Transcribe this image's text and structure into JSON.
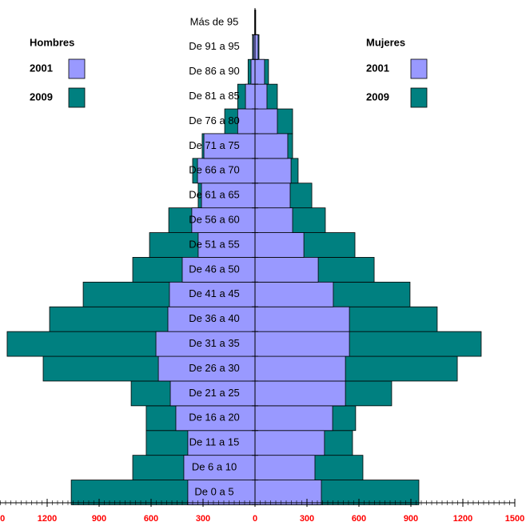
{
  "chart_data": {
    "type": "pyramid",
    "categories": [
      "De 0 a 5",
      "De 6 a 10",
      "De 11 a 15",
      "De 16 a 20",
      "De 21 a 25",
      "De 26 a 30",
      "De 31 a 35",
      "De 36 a 40",
      "De 41 a 45",
      "De 46 a 50",
      "De 51 a 55",
      "De 56 a 60",
      "De 61 a 65",
      "De 66 a 70",
      "De 71 a 75",
      "De 76 a 80",
      "De 81 a 85",
      "De 86 a 90",
      "De 91 a 95",
      "Más de 95"
    ],
    "groups": [
      {
        "name": "Hombres",
        "side": "left",
        "series": [
          {
            "name": "2001",
            "color": "#9999ff",
            "values": [
              388,
              411,
              388,
              457,
              489,
              558,
              572,
              503,
              494,
              420,
              328,
              365,
              309,
              332,
              295,
              100,
              55,
              23,
              9,
              1
            ]
          },
          {
            "name": "2009",
            "color": "#008080",
            "values": [
              1061,
              706,
              628,
              628,
              715,
              1223,
              1431,
              1186,
              992,
              706,
              609,
              498,
              328,
              360,
              305,
              175,
              100,
              40,
              14,
              2
            ]
          }
        ]
      },
      {
        "name": "Mujeres",
        "side": "right",
        "series": [
          {
            "name": "2001",
            "color": "#9999ff",
            "values": [
              383,
              346,
              401,
              448,
              522,
              522,
              545,
              545,
              452,
              365,
              282,
              217,
              203,
              208,
              189,
              129,
              69,
              55,
              18,
              3
            ]
          },
          {
            "name": "2009",
            "color": "#008080",
            "values": [
              946,
              623,
              563,
              581,
              789,
              1168,
              1306,
              1052,
              895,
              688,
              577,
              406,
              328,
              249,
              217,
              217,
              129,
              78,
              23,
              4
            ]
          }
        ]
      }
    ],
    "xlim": [
      0,
      1500
    ],
    "xticks": [
      0,
      300,
      600,
      900,
      1200,
      1500
    ],
    "xminor": 30
  }
}
